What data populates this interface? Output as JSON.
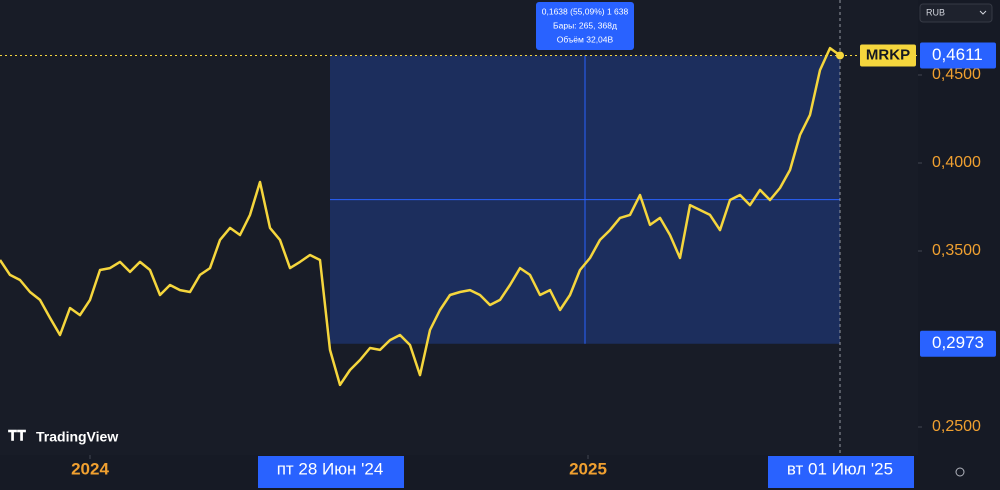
{
  "chart_data": {
    "type": "line",
    "series": [
      {
        "name": "MRKP",
        "color": "#f5d63d",
        "values": [
          0.3449,
          0.3364,
          0.3335,
          0.3267,
          0.3222,
          0.312,
          0.3023,
          0.3176,
          0.3136,
          0.3222,
          0.3392,
          0.3403,
          0.3438,
          0.3381,
          0.3438,
          0.3392,
          0.325,
          0.3307,
          0.3278,
          0.3267,
          0.3364,
          0.3403,
          0.3563,
          0.3631,
          0.3591,
          0.3705,
          0.3892,
          0.3631,
          0.3563,
          0.3403,
          0.3438,
          0.3477,
          0.3449,
          0.2938,
          0.2739,
          0.2824,
          0.2881,
          0.2949,
          0.2938,
          0.2994,
          0.3023,
          0.2966,
          0.2795,
          0.3051,
          0.3165,
          0.325,
          0.3267,
          0.3278,
          0.325,
          0.3193,
          0.3222,
          0.3307,
          0.3403,
          0.3364,
          0.325,
          0.3278,
          0.3165,
          0.325,
          0.3392,
          0.346,
          0.3563,
          0.3619,
          0.3688,
          0.3705,
          0.3818,
          0.3648,
          0.3688,
          0.3591,
          0.346,
          0.3761,
          0.3733,
          0.3705,
          0.3619,
          0.379,
          0.3818,
          0.3761,
          0.3847,
          0.379,
          0.3858,
          0.396,
          0.4159,
          0.4273,
          0.4528,
          0.4653,
          0.4611
        ]
      }
    ],
    "ylim": [
      0.2341,
      0.4926
    ],
    "yticks": [
      {
        "value": 0.25,
        "label": "0,2500"
      },
      {
        "value": 0.35,
        "label": "0,3500"
      },
      {
        "value": 0.4,
        "label": "0,4000"
      },
      {
        "value": 0.45,
        "label": "0,4500"
      }
    ],
    "xlim": [
      0,
      91.8
    ],
    "xticks": [
      {
        "value": 9,
        "label": "2024"
      },
      {
        "value": 58.8,
        "label": "2025"
      }
    ],
    "last_price": {
      "value": 0.4611,
      "label": "0,4611"
    },
    "range": {
      "low": {
        "value": 0.2973,
        "label": "0,2973"
      },
      "start_label": "пт 28 Июн '24",
      "end_label": "вт 01 Июл '25",
      "tooltip": [
        "0,1638 (55,09%) 1 638",
        "Бары: 265, 368д",
        "Объём 32,04B"
      ]
    },
    "currency": "RUB",
    "brand": "TradingView"
  }
}
